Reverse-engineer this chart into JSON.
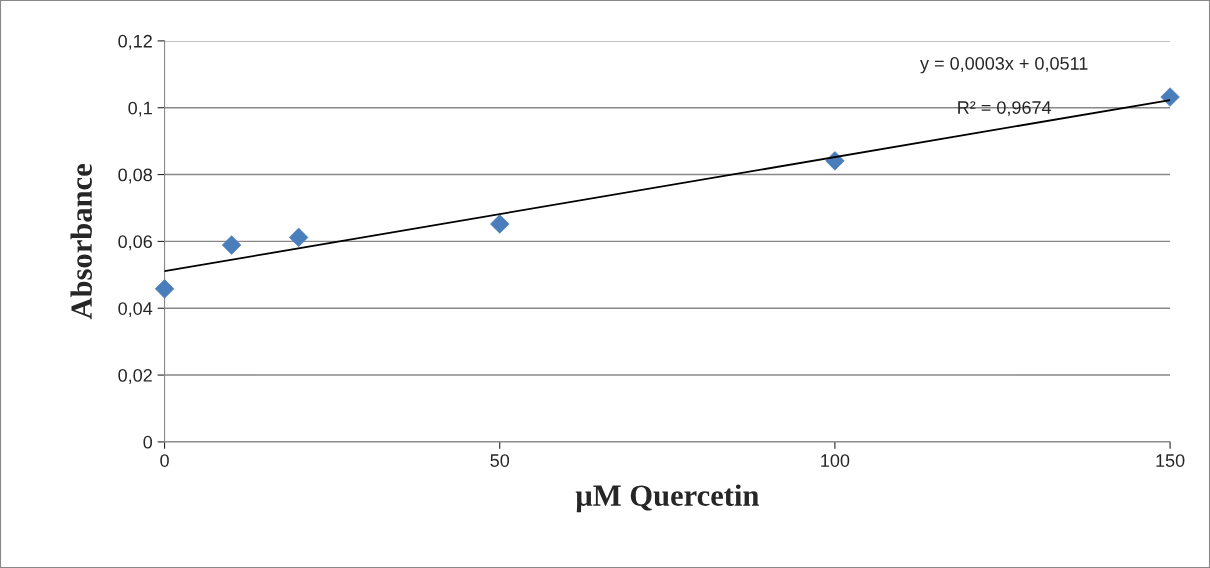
{
  "chart_data": {
    "type": "scatter",
    "xlabel": "µM Quercetin",
    "ylabel": "Absorbance",
    "x": [
      0,
      10,
      20,
      50,
      100,
      150
    ],
    "series": [
      {
        "color": "#4a7ebb",
        "marker": "diamond",
        "values": [
          0.0458,
          0.0589,
          0.0612,
          0.0652,
          0.0841,
          0.1032
        ]
      },
      {
        "type": "line",
        "color": "#000000",
        "x": [
          0,
          150
        ],
        "values": [
          0.0511,
          0.1023
        ],
        "line_style": "solid"
      }
    ],
    "annotations": [
      "y = 0,0003x + 0,0511",
      "R² = 0,9674"
    ],
    "xlim": [
      0,
      150
    ],
    "xticks": [
      0,
      50,
      100,
      150
    ],
    "ylim": [
      0,
      0.12
    ],
    "yticks": [
      0,
      {
        "value": 0.02,
        "label": "0,02"
      },
      {
        "value": 0.04,
        "label": "0,04"
      },
      {
        "value": 0.06,
        "label": "0,06"
      },
      {
        "value": 0.08,
        "label": "0,08"
      },
      {
        "value": 0.1,
        "label": "0,1"
      },
      {
        "value": 0.12,
        "label": "0,12"
      }
    ],
    "grid": "y",
    "legend": false
  }
}
